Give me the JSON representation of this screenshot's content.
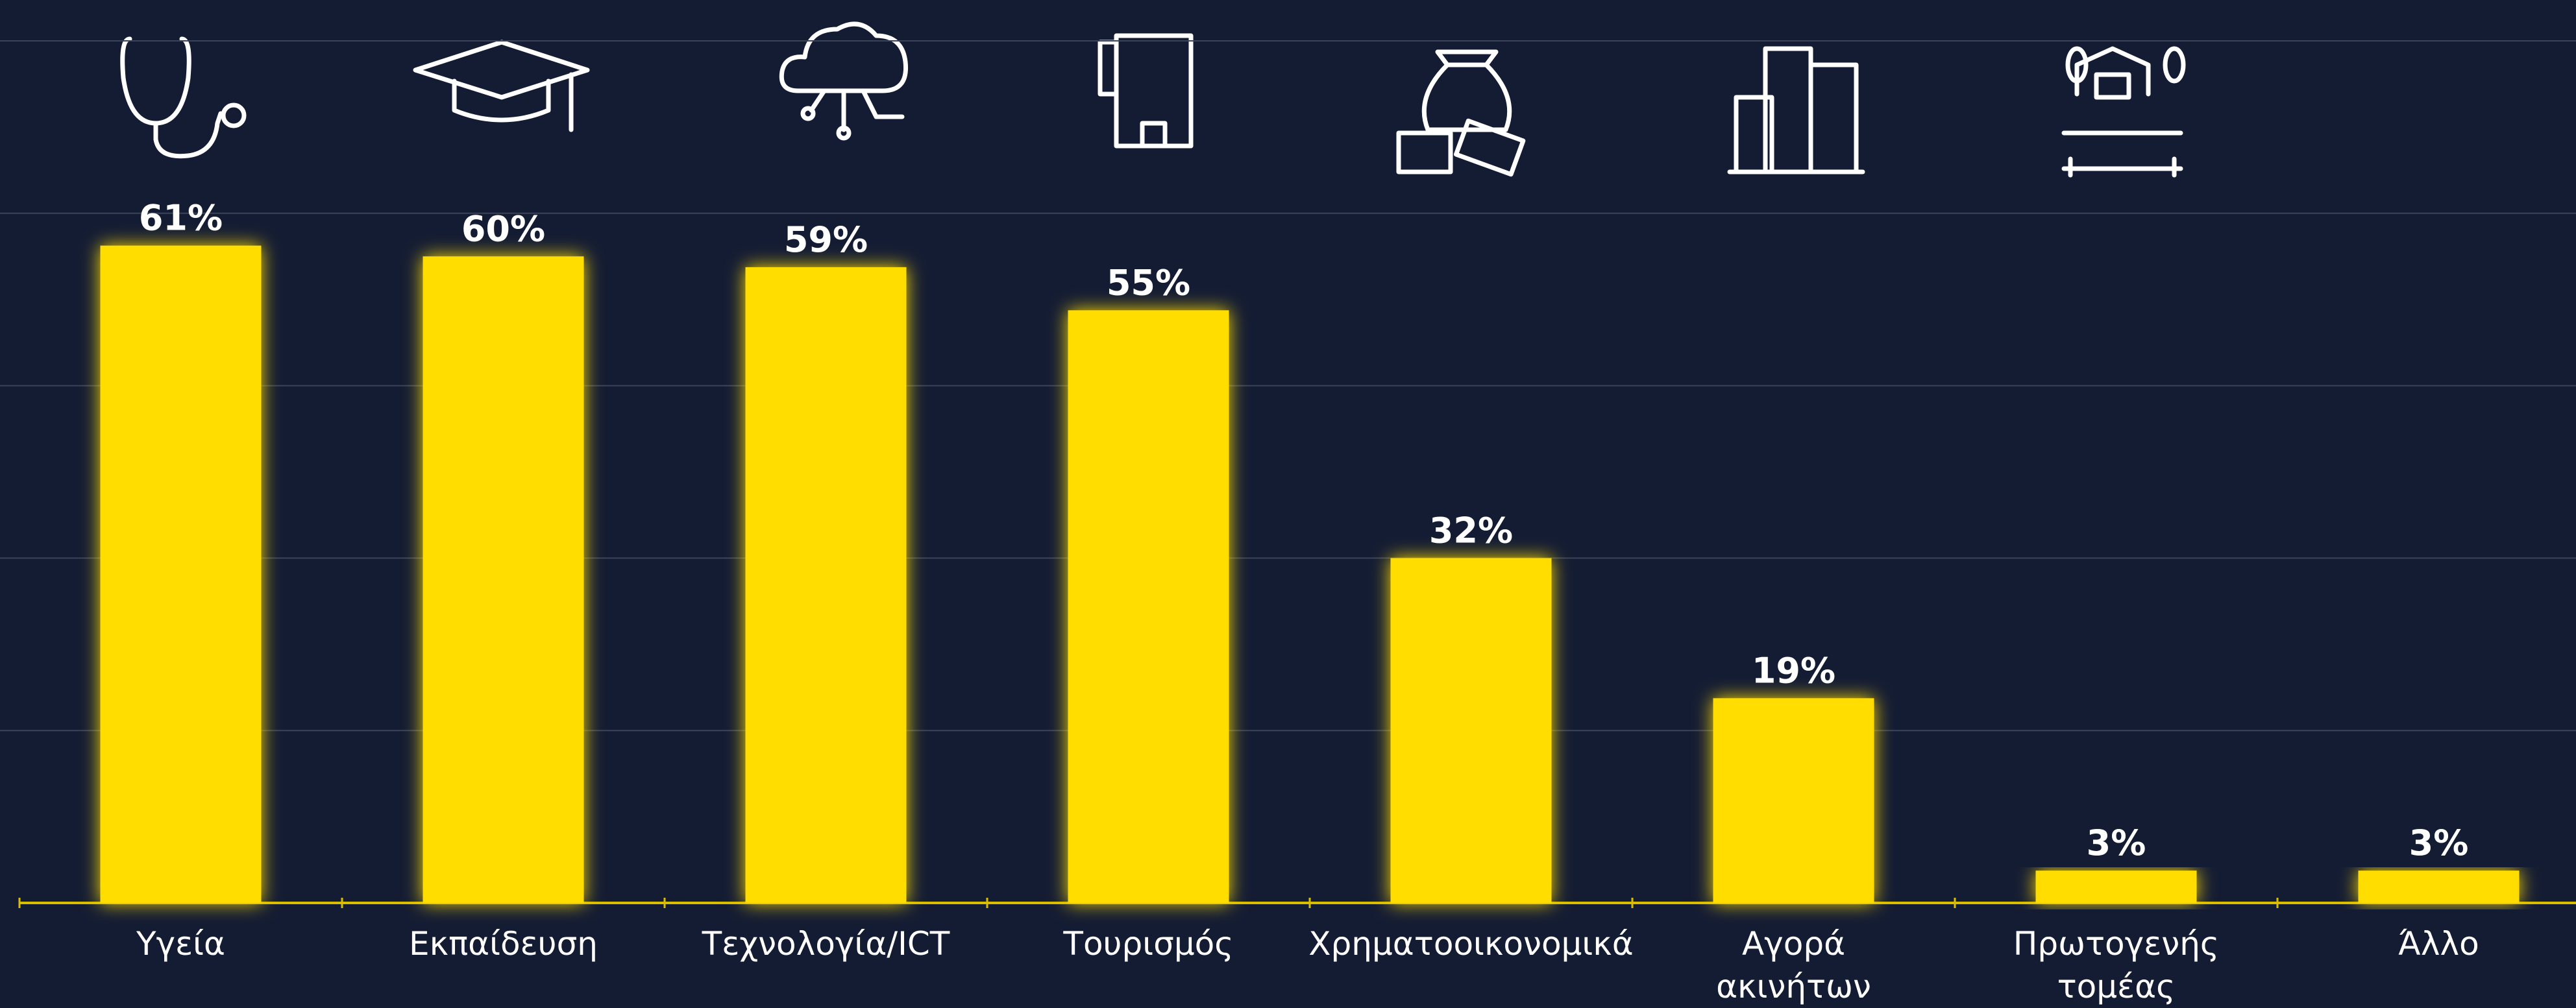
{
  "chart_data": {
    "type": "bar",
    "categories": [
      "Υγεία",
      "Εκπαίδευση",
      "Τεχνολογία/ICT",
      "Τουρισμός",
      "Χρηματοοικονομικά",
      "Αγορά\nακινήτων",
      "Πρωτογενής\nτομέας",
      "Άλλο"
    ],
    "values": [
      61,
      60,
      59,
      55,
      32,
      19,
      3,
      3
    ],
    "value_labels": [
      "61%",
      "60%",
      "59%",
      "55%",
      "32%",
      "19%",
      "3%",
      "3%"
    ],
    "color": "#ffdd00",
    "ylim": [
      0,
      80
    ],
    "yticks": [
      0,
      16,
      32,
      48,
      64,
      80
    ],
    "grid": true
  }
}
